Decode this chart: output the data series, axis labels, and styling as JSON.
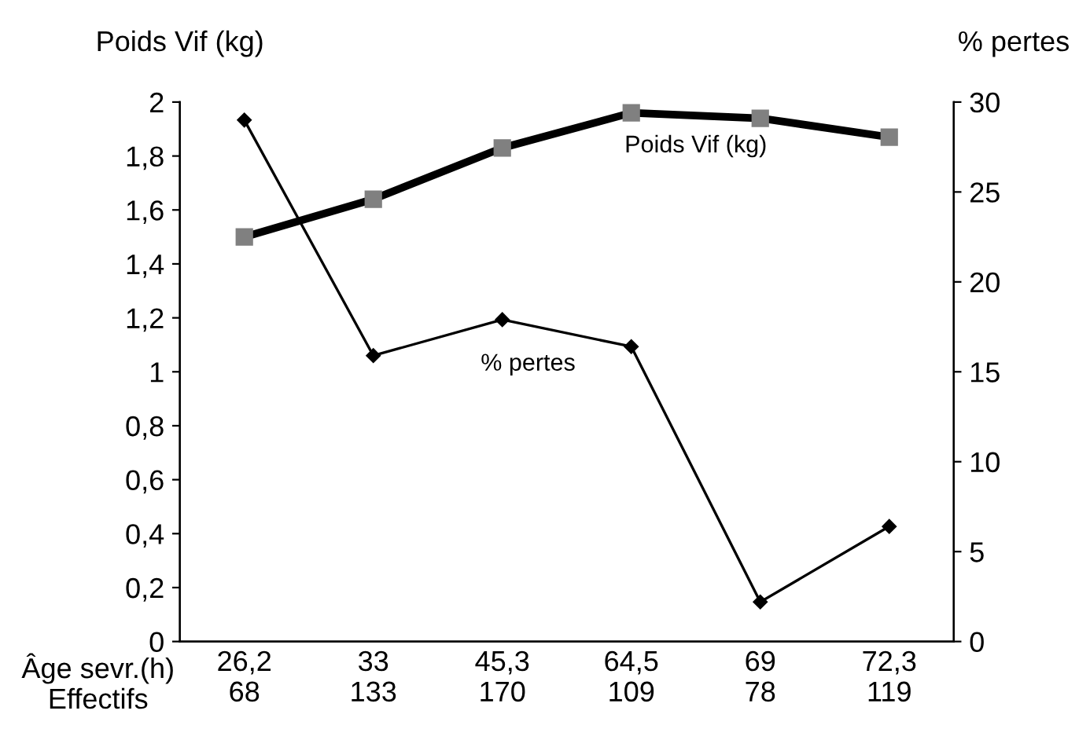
{
  "chart_data": {
    "type": "line",
    "ylabel": "Poids Vif (kg)",
    "y2label": "% pertes",
    "xlabel": "Âge sevr.(h)\nEffectifs",
    "categories": [
      "26,2\n68",
      "33\n133",
      "45,3\n170",
      "64,5\n109",
      "69\n78",
      "72,3\n119"
    ],
    "series": [
      {
        "name": "Poids Vif (kg)",
        "color": "#000000",
        "marker": "square",
        "values": [
          1.5,
          1.64,
          1.83,
          1.96,
          1.94,
          1.87
        ]
      },
      {
        "name": "% pertes",
        "color": "#000000",
        "marker": "diamond",
        "axis": "y2",
        "values": [
          29,
          15.9,
          17.9,
          16.4,
          2.2,
          6.4
        ]
      }
    ],
    "ylim": [
      0,
      2
    ],
    "yticks": [
      0,
      {
        "value": 0.2,
        "label": "0,2"
      },
      {
        "value": 0.4,
        "label": "0,4"
      },
      {
        "value": 0.6,
        "label": "0,6"
      },
      {
        "value": 0.8,
        "label": "0,8"
      },
      1,
      {
        "value": 1.2,
        "label": "1,2"
      },
      {
        "value": 1.4,
        "label": "1,4"
      },
      {
        "value": 1.6,
        "label": "1,6"
      },
      {
        "value": 1.8,
        "label": "1,8"
      },
      2
    ],
    "y2lim": [
      0,
      30
    ],
    "y2ticks": [
      0,
      5,
      10,
      15,
      20,
      25,
      30
    ],
    "grid": false,
    "legend": false
  }
}
